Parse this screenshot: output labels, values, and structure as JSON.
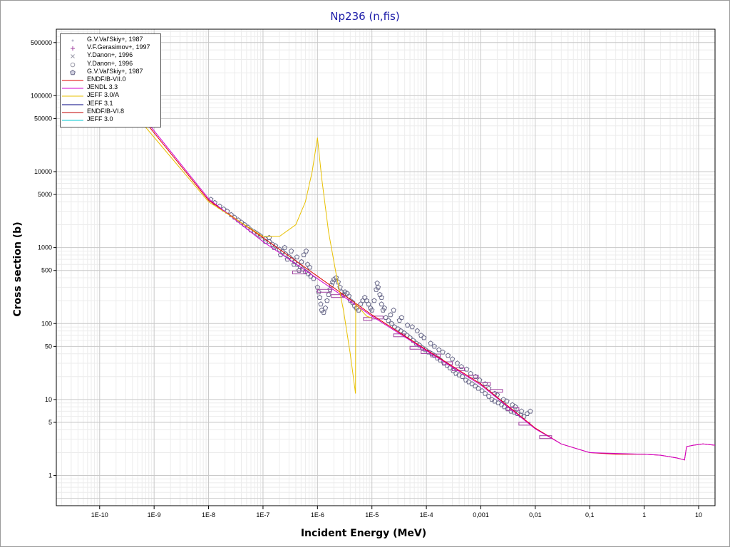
{
  "chart_data": {
    "type": "scatter",
    "title": "Np236 (n,fis)",
    "xlabel": "Incident Energy (MeV)",
    "ylabel": "Cross section (b)",
    "xscale": "log",
    "yscale": "log",
    "xlim": [
      1.6e-11,
      20
    ],
    "ylim": [
      0.4,
      750000
    ],
    "grid": true,
    "legend_position": "top-left",
    "x_ticks": [
      "1E-10",
      "1E-9",
      "1E-8",
      "1E-7",
      "1E-6",
      "1E-5",
      "1E-4",
      "0,001",
      "0,01",
      "0,1",
      "1",
      "10"
    ],
    "y_ticks": [
      "1",
      "5",
      "10",
      "50",
      "100",
      "500",
      "1000",
      "5000",
      "10000",
      "50000",
      "100000",
      "500000"
    ],
    "scatter_series": [
      {
        "name": "G.V.Val'Skiy+, 1987",
        "marker": "dot",
        "color": "#b8b8cc"
      },
      {
        "name": "V.F.Gerasimov+, 1997",
        "marker": "plus",
        "color": "#a040a0"
      },
      {
        "name": "Y.Danon+, 1996",
        "marker": "x",
        "color": "#9a9aa8"
      },
      {
        "name": "Y.Danon+, 1996",
        "marker": "circle",
        "color": "#9a9aa8"
      },
      {
        "name": "G.V.Val'Skiy+, 1987",
        "marker": "pentagon",
        "color": "#6a6a8a"
      }
    ],
    "line_series": [
      {
        "name": "ENDF/B-VII.0",
        "color": "#e00000",
        "points": [
          [
            1e-10,
            250000
          ],
          [
            1e-08,
            4200
          ],
          [
            1e-07,
            1350
          ],
          [
            1e-06,
            420
          ],
          [
            1e-05,
            130
          ],
          [
            0.0001,
            45
          ],
          [
            0.001,
            16
          ],
          [
            0.01,
            4.2
          ],
          [
            0.03,
            2.6
          ],
          [
            0.1,
            2.0
          ],
          [
            0.3,
            1.9
          ],
          [
            1,
            1.9
          ],
          [
            2,
            1.85
          ],
          [
            4,
            1.7
          ],
          [
            5.5,
            1.6
          ],
          [
            6,
            2.4
          ],
          [
            8,
            2.5
          ],
          [
            12,
            2.6
          ],
          [
            20,
            2.5
          ]
        ]
      },
      {
        "name": "JENDL 3.3",
        "color": "#d000d0",
        "points": [
          [
            1e-10,
            270000
          ],
          [
            1e-08,
            4400
          ],
          [
            1e-07,
            1200
          ],
          [
            1e-06,
            390
          ],
          [
            1e-05,
            125
          ],
          [
            0.0001,
            44
          ],
          [
            0.001,
            15.5
          ],
          [
            0.01,
            4.1
          ],
          [
            0.03,
            2.6
          ],
          [
            0.1,
            2.0
          ],
          [
            1,
            1.9
          ],
          [
            2,
            1.85
          ],
          [
            4,
            1.7
          ],
          [
            5.5,
            1.6
          ],
          [
            6,
            2.4
          ],
          [
            8,
            2.5
          ],
          [
            12,
            2.6
          ],
          [
            20,
            2.5
          ]
        ]
      },
      {
        "name": "JEFF 3.0/A",
        "color": "#e8c000",
        "points": [
          [
            1e-10,
            200000
          ],
          [
            1e-08,
            4000
          ],
          [
            1e-07,
            1400
          ],
          [
            2e-07,
            1400
          ],
          [
            4e-07,
            2000
          ],
          [
            6e-07,
            4000
          ],
          [
            8e-07,
            10000
          ],
          [
            1e-06,
            28000
          ],
          [
            1.2e-06,
            8000
          ],
          [
            1.6e-06,
            1600
          ],
          [
            2.2e-06,
            450
          ],
          [
            3e-06,
            150
          ],
          [
            4e-06,
            40
          ],
          [
            5e-06,
            12
          ],
          [
            5.05e-06,
            180
          ],
          [
            8e-06,
            125
          ],
          [
            1e-05,
            118
          ]
        ]
      },
      {
        "name": "JEFF 3.1",
        "color": "#000080",
        "points": []
      },
      {
        "name": "ENDF/B-VI.8",
        "color": "#c00000",
        "points": []
      },
      {
        "name": "JEFF 3.0",
        "color": "#00c8d0",
        "points": []
      }
    ],
    "group_data": [
      {
        "x_lo": 3.5e-07,
        "x_hi": 6e-07,
        "y": 470
      },
      {
        "x_lo": 1e-06,
        "x_hi": 1.8e-06,
        "y": 270
      },
      {
        "x_lo": 1.8e-06,
        "x_hi": 3e-06,
        "y": 230
      },
      {
        "x_lo": 7e-06,
        "x_hi": 1e-05,
        "y": 115
      },
      {
        "x_lo": 1e-05,
        "x_hi": 1.6e-05,
        "y": 120
      },
      {
        "x_lo": 2.5e-05,
        "x_hi": 4e-05,
        "y": 70
      },
      {
        "x_lo": 5e-05,
        "x_hi": 8e-05,
        "y": 48
      },
      {
        "x_lo": 8e-05,
        "x_hi": 0.00012,
        "y": 42
      },
      {
        "x_lo": 0.00012,
        "x_hi": 0.00018,
        "y": 38
      },
      {
        "x_lo": 0.0002,
        "x_hi": 0.0003,
        "y": 30
      },
      {
        "x_lo": 0.0003,
        "x_hi": 0.0005,
        "y": 25
      },
      {
        "x_lo": 0.0006,
        "x_hi": 0.0009,
        "y": 20
      },
      {
        "x_lo": 0.001,
        "x_hi": 0.0015,
        "y": 16
      },
      {
        "x_lo": 0.0015,
        "x_hi": 0.0025,
        "y": 13
      },
      {
        "x_lo": 0.003,
        "x_hi": 0.005,
        "y": 7.5
      },
      {
        "x_lo": 0.005,
        "x_hi": 0.008,
        "y": 4.8
      },
      {
        "x_lo": 0.012,
        "x_hi": 0.02,
        "y": 3.2
      }
    ],
    "scatter_points": [
      [
        1.1e-08,
        4300
      ],
      [
        1.3e-08,
        3900
      ],
      [
        1.6e-08,
        3500
      ],
      [
        1.9e-08,
        3200
      ],
      [
        2.2e-08,
        3000
      ],
      [
        2.6e-08,
        2700
      ],
      [
        3e-08,
        2500
      ],
      [
        3.5e-08,
        2300
      ],
      [
        4e-08,
        2150
      ],
      [
        4.6e-08,
        2000
      ],
      [
        5.3e-08,
        1850
      ],
      [
        6e-08,
        1700
      ],
      [
        7e-08,
        1600
      ],
      [
        8e-08,
        1500
      ],
      [
        9e-08,
        1420
      ],
      [
        1.1e-07,
        1300
      ],
      [
        1.3e-07,
        1200
      ],
      [
        1.5e-07,
        1100
      ],
      [
        1.7e-07,
        1050
      ],
      [
        2e-07,
        950
      ],
      [
        2.3e-07,
        880
      ],
      [
        2.6e-07,
        820
      ],
      [
        3e-07,
        760
      ],
      [
        3.4e-07,
        700
      ],
      [
        3.8e-07,
        650
      ],
      [
        4.3e-07,
        600
      ],
      [
        4.8e-07,
        560
      ],
      [
        5.3e-07,
        520
      ],
      [
        6e-07,
        480
      ],
      [
        6.8e-07,
        450
      ],
      [
        7.5e-07,
        420
      ],
      [
        8.5e-07,
        390
      ],
      [
        1.1e-07,
        1200
      ],
      [
        1.3e-07,
        1350
      ],
      [
        1.6e-07,
        1000
      ],
      [
        2.1e-07,
        800
      ],
      [
        2.5e-07,
        1000
      ],
      [
        2.8e-07,
        700
      ],
      [
        3.3e-07,
        900
      ],
      [
        3.7e-07,
        600
      ],
      [
        4.2e-07,
        750
      ],
      [
        4.6e-07,
        500
      ],
      [
        5.1e-07,
        650
      ],
      [
        5.6e-07,
        800
      ],
      [
        6.2e-07,
        900
      ],
      [
        6.6e-07,
        600
      ],
      [
        7.2e-07,
        550
      ],
      [
        1e-06,
        300
      ],
      [
        1.05e-06,
        260
      ],
      [
        1.1e-06,
        220
      ],
      [
        1.15e-06,
        180
      ],
      [
        1.2e-06,
        150
      ],
      [
        1.3e-06,
        140
      ],
      [
        1.4e-06,
        160
      ],
      [
        1.5e-06,
        200
      ],
      [
        1.6e-06,
        240
      ],
      [
        1.7e-06,
        280
      ],
      [
        1.8e-06,
        320
      ],
      [
        1.9e-06,
        350
      ],
      [
        2e-06,
        380
      ],
      [
        2.2e-06,
        400
      ],
      [
        2.4e-06,
        350
      ],
      [
        2.6e-06,
        300
      ],
      [
        2.8e-06,
        260
      ],
      [
        3e-06,
        240
      ],
      [
        3.2e-06,
        260
      ],
      [
        3.5e-06,
        250
      ],
      [
        3.8e-06,
        230
      ],
      [
        4e-06,
        200
      ],
      [
        4.4e-06,
        190
      ],
      [
        4.8e-06,
        170
      ],
      [
        5.2e-06,
        160
      ],
      [
        5.7e-06,
        150
      ],
      [
        6.2e-06,
        180
      ],
      [
        6.8e-06,
        200
      ],
      [
        7.4e-06,
        220
      ],
      [
        8e-06,
        200
      ],
      [
        8.7e-06,
        180
      ],
      [
        9.4e-06,
        160
      ],
      [
        1e-05,
        150
      ],
      [
        1.1e-05,
        200
      ],
      [
        1.2e-05,
        280
      ],
      [
        1.25e-05,
        340
      ],
      [
        1.3e-05,
        300
      ],
      [
        1.4e-05,
        240
      ],
      [
        1.5e-05,
        180
      ],
      [
        1.6e-05,
        150
      ],
      [
        1.8e-05,
        120
      ],
      [
        2e-05,
        110
      ],
      [
        2.3e-05,
        100
      ],
      [
        2.6e-05,
        90
      ],
      [
        3e-05,
        85
      ],
      [
        3.4e-05,
        80
      ],
      [
        3.9e-05,
        75
      ],
      [
        4.4e-05,
        70
      ],
      [
        5e-05,
        65
      ],
      [
        5.7e-05,
        60
      ],
      [
        6.5e-05,
        55
      ],
      [
        7.4e-05,
        52
      ],
      [
        8.4e-05,
        48
      ],
      [
        9.6e-05,
        45
      ],
      [
        0.00011,
        42
      ],
      [
        0.000125,
        40
      ],
      [
        0.00014,
        38
      ],
      [
        0.00016,
        35
      ],
      [
        0.00018,
        33
      ],
      [
        0.00021,
        30
      ],
      [
        0.00024,
        28
      ],
      [
        0.00027,
        26
      ],
      [
        0.00031,
        24
      ],
      [
        0.00035,
        22
      ],
      [
        0.0004,
        21
      ],
      [
        0.00046,
        20
      ],
      [
        0.00053,
        18
      ],
      [
        0.0006,
        17
      ],
      [
        0.00069,
        16
      ],
      [
        0.00079,
        15
      ],
      [
        0.0009,
        14
      ],
      [
        0.00105,
        13
      ],
      [
        0.0012,
        12
      ],
      [
        0.0014,
        11
      ],
      [
        0.0016,
        10
      ],
      [
        0.0018,
        9.5
      ],
      [
        0.0021,
        9
      ],
      [
        0.0024,
        8.5
      ],
      [
        0.0027,
        8
      ],
      [
        0.0031,
        7.5
      ],
      [
        0.0036,
        7
      ],
      [
        0.0041,
        6.8
      ],
      [
        0.0047,
        6.5
      ],
      [
        0.0054,
        6.2
      ],
      [
        0.0062,
        6
      ],
      [
        0.0071,
        6.5
      ],
      [
        0.0081,
        7
      ],
      [
        1.5e-05,
        220
      ],
      [
        2.5e-05,
        150
      ],
      [
        3.5e-05,
        120
      ],
      [
        5.5e-05,
        90
      ],
      [
        8e-05,
        70
      ],
      [
        0.00012,
        55
      ],
      [
        0.00017,
        45
      ],
      [
        0.00025,
        38
      ],
      [
        0.00037,
        30
      ],
      [
        0.00055,
        25
      ],
      [
        0.0008,
        20
      ],
      [
        0.0012,
        16
      ],
      [
        0.0018,
        12
      ],
      [
        0.0026,
        10
      ],
      [
        0.0038,
        8.5
      ],
      [
        0.0056,
        7
      ],
      [
        1.7e-05,
        160
      ],
      [
        2.2e-05,
        130
      ],
      [
        3.2e-05,
        110
      ],
      [
        4.5e-05,
        95
      ],
      [
        6.8e-05,
        80
      ],
      [
        9e-05,
        65
      ],
      [
        0.00014,
        50
      ],
      [
        0.0002,
        42
      ],
      [
        0.0003,
        34
      ],
      [
        0.00044,
        27
      ],
      [
        0.00065,
        22
      ],
      [
        0.00095,
        18
      ],
      [
        0.0014,
        14
      ],
      [
        0.002,
        11.5
      ],
      [
        0.003,
        9.5
      ],
      [
        0.0043,
        8
      ]
    ],
    "legend": [
      {
        "label": "G.V.Val'Skiy+, 1987",
        "kind": "marker",
        "marker": "dot",
        "color": "#b8b8cc"
      },
      {
        "label": "V.F.Gerasimov+, 1997",
        "kind": "marker",
        "marker": "plus",
        "color": "#a040a0"
      },
      {
        "label": "Y.Danon+, 1996",
        "kind": "marker",
        "marker": "x",
        "color": "#9a9aa8"
      },
      {
        "label": "Y.Danon+, 1996",
        "kind": "marker",
        "marker": "circle",
        "color": "#9a9aa8"
      },
      {
        "label": "G.V.Val'Skiy+, 1987",
        "kind": "marker",
        "marker": "pentagon",
        "color": "#6a6a8a"
      },
      {
        "label": "ENDF/B-VII.0",
        "kind": "line",
        "color": "#e00000"
      },
      {
        "label": "JENDL 3.3",
        "kind": "line",
        "color": "#d000d0"
      },
      {
        "label": "JEFF 3.0/A",
        "kind": "line",
        "color": "#e8c000"
      },
      {
        "label": "JEFF 3.1",
        "kind": "line",
        "color": "#000080"
      },
      {
        "label": "ENDF/B-VI.8",
        "kind": "line",
        "color": "#c00000"
      },
      {
        "label": "JEFF 3.0",
        "kind": "line",
        "color": "#00c8d0"
      }
    ]
  }
}
